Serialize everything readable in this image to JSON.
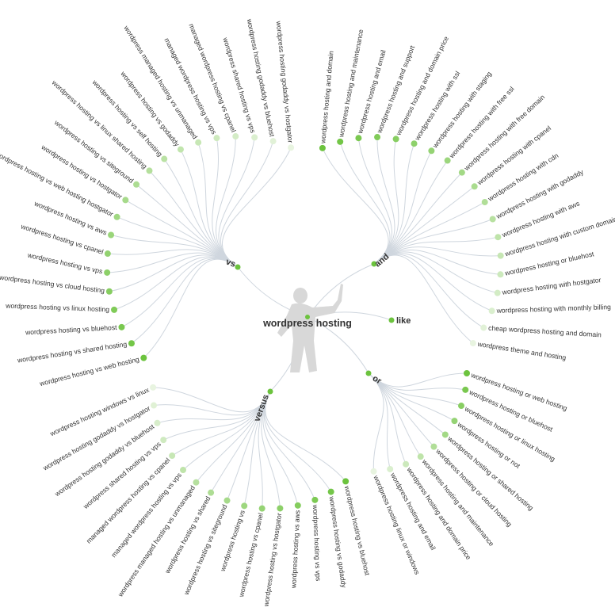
{
  "root": {
    "label": "wordpress hosting"
  },
  "colors": {
    "strong": "#6cc33e",
    "weak": "#e8f4e0",
    "link": "#cfd6de",
    "text": "#333333",
    "silhouette": "#d6d6d6"
  },
  "branches": [
    {
      "id": "vs",
      "label": "vs",
      "leaves": [
        "wordpress hosting godaddy vs hostgator",
        "wordpress hosting godaddy vs bluehost",
        "wordpress shared hosting vs vps",
        "managed wordpress hosting vs cpanel",
        "managed wordpress hosting vs vps",
        "wordpress managed hosting vs unmanaged",
        "wordpress hosting vs godaddy",
        "wordpress hosting vs self hosting",
        "wordpress hosting vs linux shared hosting",
        "wordpress hosting vs siteground",
        "wordpress hosting vs hostgator",
        "wordpress hosting vs web hosting hostgator",
        "wordpress hosting vs aws",
        "wordpress hosting vs cpanel",
        "wordpress hosting vs vps",
        "wordpress hosting vs cloud hosting",
        "wordpress hosting vs linux hosting",
        "wordpress hosting vs bluehost",
        "wordpress hosting vs shared hosting",
        "wordpress hosting vs web hosting"
      ]
    },
    {
      "id": "and",
      "label": "and",
      "leaves": [
        "wordpress hosting and domain",
        "wordpress hosting and maintenance",
        "wordpress hosting and email",
        "wordpress hosting and support",
        "wordpress hosting and domain price",
        "wordpress hosting with ssl",
        "wordpress hosting with staging",
        "wordpress hosting with free ssl",
        "wordpress hosting with free domain",
        "wordpress hosting with cpanel",
        "wordpress hosting with cdn",
        "wordpress hosting with godaddy",
        "wordpress hosting with aws",
        "wordpress hosting with custom domain",
        "wordpress hosting or bluehost",
        "wordpress hosting with hostgator",
        "wordpress hosting with monthly billing",
        "cheap wordpress hosting and domain",
        "wordpress theme and hosting"
      ]
    },
    {
      "id": "like",
      "label": "like",
      "leaves": []
    },
    {
      "id": "or",
      "label": "or",
      "leaves": [
        "wordpress hosting or web hosting",
        "wordpress hosting or bluehost",
        "wordpress hosting or linux hosting",
        "wordpress hosting or not",
        "wordpress hosting or shared hosting",
        "wordpress hosting or cloud hosting",
        "wordpress hosting and maintenance",
        "wordpress hosting and domain price",
        "wordpress hosting and email",
        "wordpress hosting linux or windows"
      ]
    },
    {
      "id": "versus",
      "label": "versus",
      "leaves": [
        "wordpress hosting windows vs linux",
        "wordpress hosting godaddy vs hostgator",
        "wordpress hosting godaddy vs bluehost",
        "wordpress shared hosting vs vps",
        "managed wordpress hosting vs cpanel",
        "managed wordpress hosting vs vps",
        "wordpress managed hosting vs unmanaged",
        "wordpress hosting vs shared",
        "wordpress hosting vs siteground",
        "wordpress hosting vs",
        "wordpress hosting vs cpanel",
        "wordpress hosting vs hostgator",
        "wordpress hosting vs aws",
        "wordpress hosting vs vps",
        "wordpress hosting vs godaddy",
        "wordpress hosting vs bluehost"
      ]
    }
  ]
}
